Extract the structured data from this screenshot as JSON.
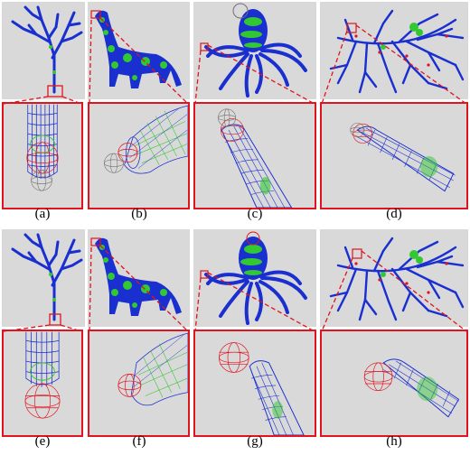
{
  "figure": {
    "row1": {
      "captions": [
        "(a)",
        "(b)",
        "(c)",
        "(d)"
      ]
    },
    "row2": {
      "captions": [
        "(e)",
        "(f)",
        "(g)",
        "(h)"
      ]
    }
  },
  "colors": {
    "background": "#d9d9d9",
    "mesh_blue": "#1a2fd0",
    "mesh_green": "#32c832",
    "highlight_red": "#e0141e",
    "sphere_gray": "#707070"
  },
  "icons": [
    "tree-model",
    "dinosaur-model",
    "octopus-model",
    "vessel-tree-model",
    "sphere-wireframe"
  ]
}
